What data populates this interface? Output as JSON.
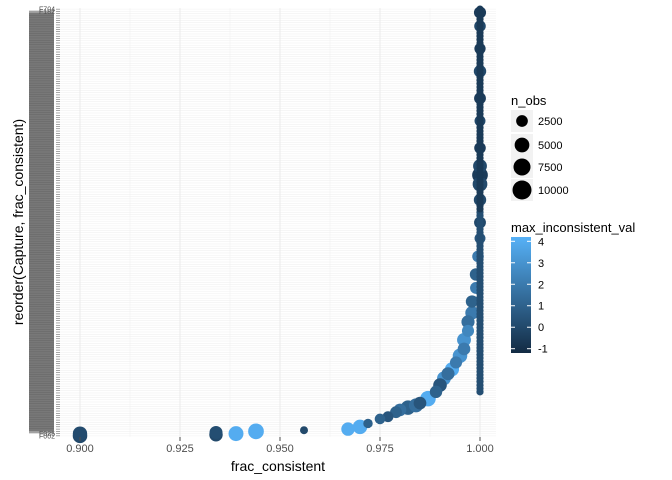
{
  "chart_data": {
    "type": "scatter",
    "xlabel": "frac_consistent",
    "ylabel": "reorder(Capture, frac_consistent)",
    "xlim": [
      0.895,
      1.004
    ],
    "x_ticks": [
      0.9,
      0.925,
      0.95,
      0.975,
      1.0
    ],
    "x_tick_labels": [
      "0.900",
      "0.925",
      "0.950",
      "0.975",
      "1.000"
    ],
    "y_category_count": 190,
    "y_labels_top": [
      "F704",
      "F182"
    ],
    "y_labels_bottom": [
      "F025",
      "F002"
    ],
    "grid": true,
    "legend": {
      "placement": "right",
      "size": {
        "title": "n_obs",
        "values": [
          2500,
          5000,
          7500,
          10000
        ],
        "labels": [
          "2500",
          "5000",
          "7500",
          "10000"
        ]
      },
      "color": {
        "title": "max_inconsistent_val",
        "range": [
          -1.2,
          4.2
        ],
        "low_color": "#132B43",
        "high_color": "#56B1F7",
        "ticks": [
          4,
          3,
          2,
          1,
          0,
          -1
        ],
        "tick_labels": [
          "4",
          "3",
          "2",
          "1",
          "0",
          "-1"
        ]
      }
    },
    "points": [
      {
        "x": 0.9,
        "y": 0.5,
        "n": 4800,
        "c": 0.0
      },
      {
        "x": 0.9,
        "y": 1.5,
        "n": 4600,
        "c": 0.1
      },
      {
        "x": 0.934,
        "y": 1.0,
        "n": 3800,
        "c": 0.0
      },
      {
        "x": 0.934,
        "y": 2.0,
        "n": 3500,
        "c": 0.2
      },
      {
        "x": 0.939,
        "y": 1.5,
        "n": 5200,
        "c": 4.0
      },
      {
        "x": 0.944,
        "y": 2.5,
        "n": 6000,
        "c": 4.0
      },
      {
        "x": 0.956,
        "y": 3.0,
        "n": 600,
        "c": 0.0
      },
      {
        "x": 0.967,
        "y": 3.5,
        "n": 3800,
        "c": 4.0
      },
      {
        "x": 0.97,
        "y": 4.5,
        "n": 4800,
        "c": 4.0
      },
      {
        "x": 0.972,
        "y": 6.0,
        "n": 1200,
        "c": 1.0
      },
      {
        "x": 0.975,
        "y": 8.0,
        "n": 1800,
        "c": 1.0
      },
      {
        "x": 0.977,
        "y": 9.0,
        "n": 2000,
        "c": 0.5
      },
      {
        "x": 0.979,
        "y": 11.0,
        "n": 2600,
        "c": 1.0
      },
      {
        "x": 0.98,
        "y": 12.0,
        "n": 3200,
        "c": 1.5
      },
      {
        "x": 0.982,
        "y": 13.0,
        "n": 4800,
        "c": 1.0
      },
      {
        "x": 0.984,
        "y": 14.0,
        "n": 4400,
        "c": 1.5
      },
      {
        "x": 0.985,
        "y": 15.0,
        "n": 3200,
        "c": 0.5
      },
      {
        "x": 0.987,
        "y": 17.0,
        "n": 5800,
        "c": 4.0
      },
      {
        "x": 0.989,
        "y": 20.0,
        "n": 3000,
        "c": 1.0
      },
      {
        "x": 0.99,
        "y": 23.0,
        "n": 4000,
        "c": 0.5
      },
      {
        "x": 0.991,
        "y": 26.0,
        "n": 4200,
        "c": 3.0
      },
      {
        "x": 0.992,
        "y": 28.0,
        "n": 3500,
        "c": 1.5
      },
      {
        "x": 0.993,
        "y": 30.0,
        "n": 4400,
        "c": 4.0
      },
      {
        "x": 0.994,
        "y": 33.0,
        "n": 2800,
        "c": 2.0
      },
      {
        "x": 0.995,
        "y": 36.0,
        "n": 4800,
        "c": 3.0
      },
      {
        "x": 0.996,
        "y": 39.0,
        "n": 3200,
        "c": 2.0
      },
      {
        "x": 0.996,
        "y": 43.0,
        "n": 4200,
        "c": 3.0
      },
      {
        "x": 0.997,
        "y": 47.0,
        "n": 2800,
        "c": 2.5
      },
      {
        "x": 0.997,
        "y": 51.0,
        "n": 3600,
        "c": 1.5
      },
      {
        "x": 0.998,
        "y": 55.0,
        "n": 3800,
        "c": 2.0
      },
      {
        "x": 0.998,
        "y": 60.0,
        "n": 3000,
        "c": 1.0
      },
      {
        "x": 0.999,
        "y": 66.0,
        "n": 2600,
        "c": 2.0
      },
      {
        "x": 0.999,
        "y": 72.0,
        "n": 3000,
        "c": 1.0
      },
      {
        "x": 0.9995,
        "y": 80.0,
        "n": 2400,
        "c": 2.0
      },
      {
        "x": 1.0,
        "y": 88.0,
        "n": 2000,
        "c": 0.5
      },
      {
        "x": 1.0,
        "y": 95.0,
        "n": 2600,
        "c": 0.0
      },
      {
        "x": 1.0,
        "y": 105.0,
        "n": 3000,
        "c": 0.0
      },
      {
        "x": 1.0,
        "y": 112.0,
        "n": 5000,
        "c": 0.0
      },
      {
        "x": 1.0,
        "y": 116.0,
        "n": 6000,
        "c": -0.5
      },
      {
        "x": 1.0,
        "y": 120.0,
        "n": 4200,
        "c": 0.0
      },
      {
        "x": 1.0,
        "y": 128.0,
        "n": 2400,
        "c": -0.5
      },
      {
        "x": 1.0,
        "y": 140.0,
        "n": 2000,
        "c": 0.0
      },
      {
        "x": 1.0,
        "y": 150.0,
        "n": 2600,
        "c": -0.5
      },
      {
        "x": 1.0,
        "y": 162.0,
        "n": 3000,
        "c": 0.0
      },
      {
        "x": 1.0,
        "y": 172.0,
        "n": 2200,
        "c": -0.5
      },
      {
        "x": 1.0,
        "y": 182.0,
        "n": 2400,
        "c": 0.0
      },
      {
        "x": 1.0,
        "y": 188.0,
        "n": 2800,
        "c": -0.5
      }
    ]
  }
}
